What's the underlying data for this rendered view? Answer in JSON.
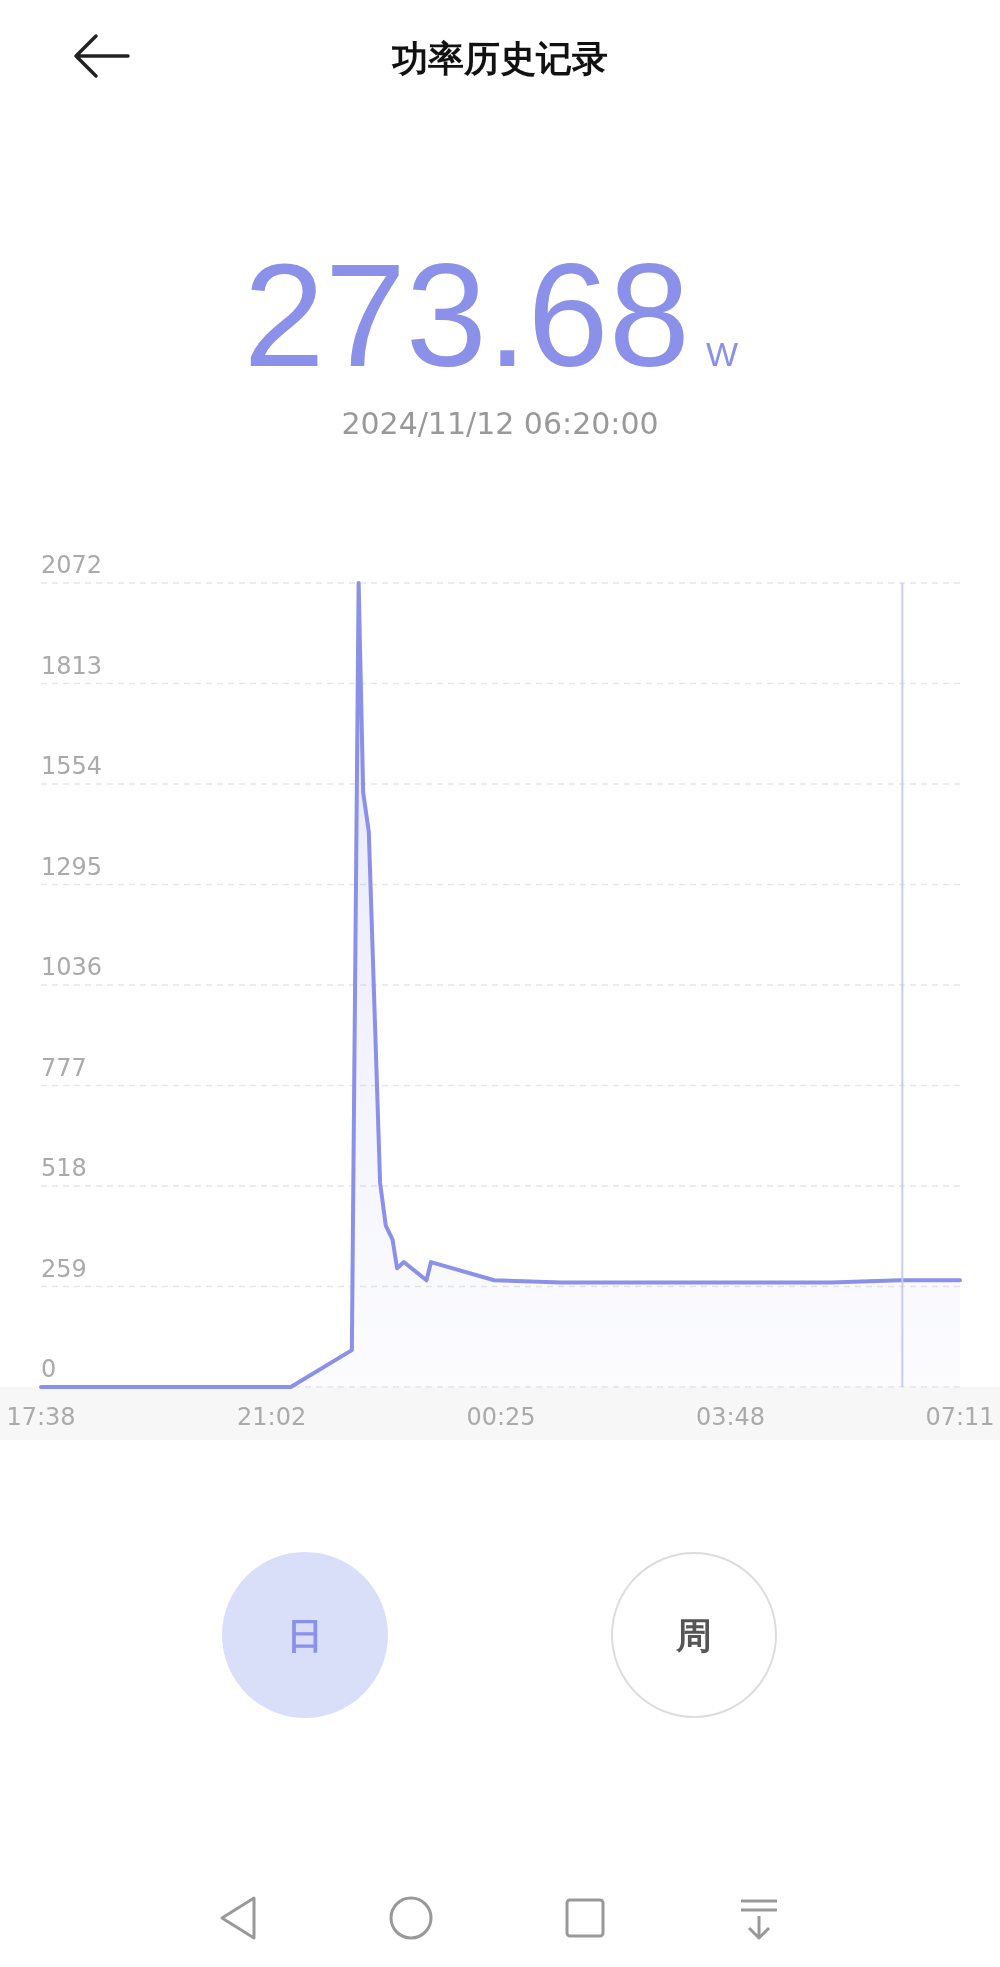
{
  "chart_data": {
    "type": "area",
    "title": "功率历史记录",
    "annotations": [
      "273.68",
      "W",
      "2024/11/12 06:20:00",
      "日",
      "周"
    ],
    "x": [
      "2024-11-11T17:38",
      "2024-11-11T21:19",
      "2024-11-11T22:13",
      "2024-11-11T22:19",
      "2024-11-11T22:23",
      "2024-11-11T22:28",
      "2024-11-11T22:38",
      "2024-11-11T22:43",
      "2024-11-11T22:49",
      "2024-11-11T22:53",
      "2024-11-11T22:59",
      "2024-11-11T23:19",
      "2024-11-11T23:23",
      "2024-11-12T00:19",
      "2024-11-12T01:18",
      "2024-11-12T05:17",
      "2024-11-12T06:18",
      "2024-11-12T07:11"
    ],
    "series": [
      {
        "color": "#8b90e8",
        "values": [
          0,
          0,
          95,
          2072,
          1532,
          1431,
          526,
          416,
          380,
          306,
          322,
          275,
          322,
          275,
          269,
          269,
          275,
          275
        ]
      }
    ],
    "xlim": [
      "2024-11-11T17:38",
      "2024-11-12T07:11"
    ],
    "xticks": [
      {
        "value": "2024-11-11T17:38",
        "label": "17:38"
      },
      {
        "value": "2024-11-11T21:02",
        "label": "21:02"
      },
      {
        "value": "2024-11-12T00:25",
        "label": "00:25"
      },
      {
        "value": "2024-11-12T03:48",
        "label": "03:48"
      },
      {
        "value": "2024-11-12T07:11",
        "label": "07:11"
      }
    ],
    "ylim": [
      0,
      2072
    ],
    "yticks": [
      0,
      259,
      518,
      777,
      1036,
      1295,
      1554,
      1813,
      2072
    ],
    "grid": "y",
    "ref_lines": [
      {
        "axis": "x",
        "value": "2024-11-12T06:20",
        "color": "#c9cbf0"
      }
    ]
  }
}
